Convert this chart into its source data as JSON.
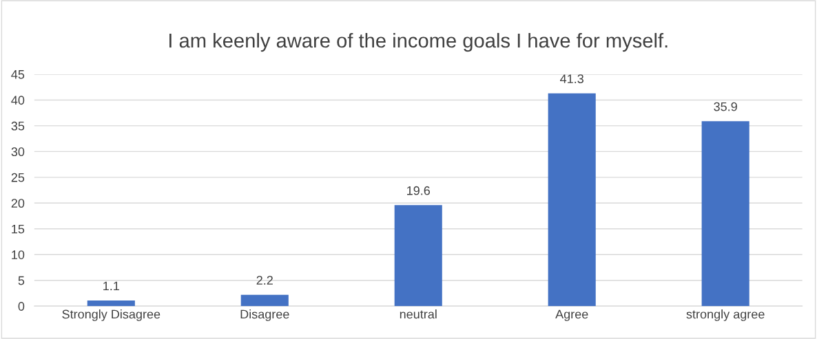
{
  "chart_data": {
    "type": "bar",
    "title": "I am keenly aware of the income goals I have for myself.",
    "categories": [
      "Strongly Disagree",
      "Disagree",
      "neutral",
      "Agree",
      "strongly agree"
    ],
    "values": [
      1.1,
      2.2,
      19.6,
      41.3,
      35.9
    ],
    "color": "#4472c4",
    "ylim": [
      0,
      45
    ],
    "yticks": [
      0,
      5,
      10,
      15,
      20,
      25,
      30,
      35,
      40,
      45
    ],
    "grid": "y",
    "data_labels": true
  }
}
